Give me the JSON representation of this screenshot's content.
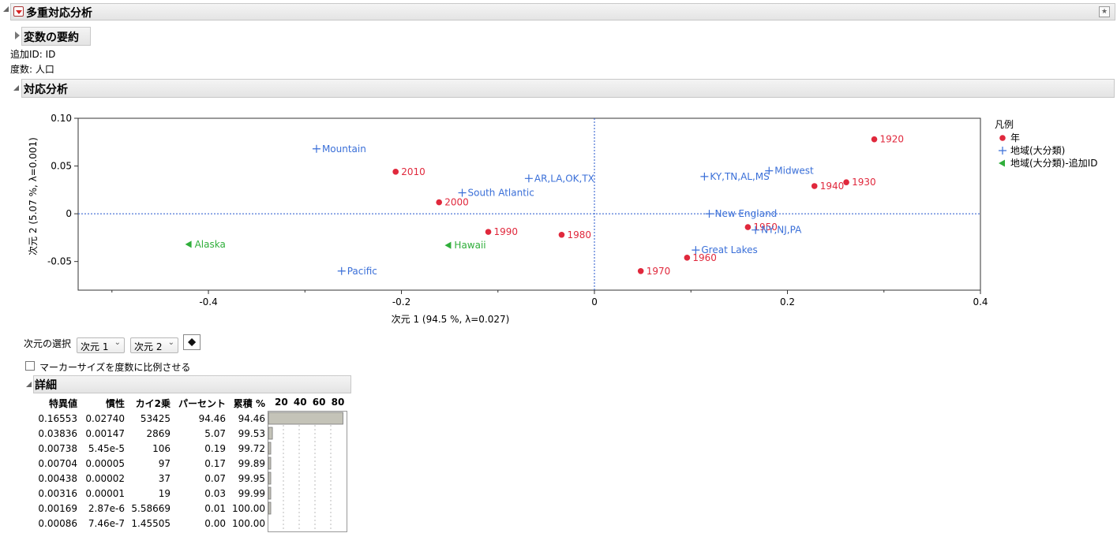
{
  "report": {
    "title": "多重対応分析",
    "summary_title": "変数の要約",
    "supp_id_label": "追加ID: ID",
    "freq_label": "度数: 人口",
    "ca_title": "対応分析"
  },
  "chart_data": {
    "type": "scatter",
    "xlabel": "次元 1  (94.5 %, λ=0.027)",
    "ylabel": "次元 2  (5.07 %, λ=0.001)",
    "xlim": [
      -0.535,
      0.4
    ],
    "ylim": [
      -0.08,
      0.1
    ],
    "x_ticks": [
      -0.4,
      -0.2,
      0,
      0.2,
      0.4
    ],
    "x_tick_labels": [
      "-0.4",
      "-0.2",
      "0",
      "0.2",
      "0.4"
    ],
    "y_ticks": [
      0.1,
      0.05,
      0,
      -0.05
    ],
    "y_tick_labels": [
      "0.10",
      "0.05",
      "0",
      "-0.05"
    ],
    "reference_lines": [
      {
        "axis": "x",
        "value": 0
      },
      {
        "axis": "y",
        "value": 0
      }
    ],
    "legend_title": "凡例",
    "legend_position": "right",
    "series": [
      {
        "name": "年",
        "marker": "circle",
        "color": "#e0283c",
        "points": [
          {
            "label": "1920",
            "x": 0.29,
            "y": 0.078
          },
          {
            "label": "1930",
            "x": 0.261,
            "y": 0.033
          },
          {
            "label": "1940",
            "x": 0.228,
            "y": 0.029
          },
          {
            "label": "1950",
            "x": 0.159,
            "y": -0.014
          },
          {
            "label": "1960",
            "x": 0.096,
            "y": -0.046
          },
          {
            "label": "1970",
            "x": 0.048,
            "y": -0.06
          },
          {
            "label": "1980",
            "x": -0.034,
            "y": -0.022
          },
          {
            "label": "1990",
            "x": -0.11,
            "y": -0.019
          },
          {
            "label": "2000",
            "x": -0.161,
            "y": 0.012
          },
          {
            "label": "2010",
            "x": -0.206,
            "y": 0.044
          }
        ]
      },
      {
        "name": "地域(大分類)",
        "marker": "plus",
        "color": "#3a6fd8",
        "points": [
          {
            "label": "Mountain",
            "x": -0.288,
            "y": 0.068
          },
          {
            "label": "AR,LA,OK,TX",
            "x": -0.068,
            "y": 0.037
          },
          {
            "label": "South Atlantic",
            "x": -0.137,
            "y": 0.022
          },
          {
            "label": "Pacific",
            "x": -0.262,
            "y": -0.06
          },
          {
            "label": "KY,TN,AL,MS",
            "x": 0.114,
            "y": 0.039
          },
          {
            "label": "Midwest",
            "x": 0.181,
            "y": 0.045
          },
          {
            "label": "New England",
            "x": 0.119,
            "y": 0.0
          },
          {
            "label": "NY,NJ,PA",
            "x": 0.167,
            "y": -0.017
          },
          {
            "label": "Great Lakes",
            "x": 0.105,
            "y": -0.038
          }
        ]
      },
      {
        "name": "地域(大分類)-追加ID",
        "marker": "triangle-left",
        "color": "#2fae3a",
        "points": [
          {
            "label": "Alaska",
            "x": -0.42,
            "y": -0.032
          },
          {
            "label": "Hawaii",
            "x": -0.151,
            "y": -0.033
          }
        ]
      }
    ]
  },
  "dimension_select": {
    "label": "次元の選択",
    "x_value": "次元 1",
    "y_value": "次元 2"
  },
  "marker_size_checkbox": {
    "label": "マーカーサイズを度数に比例させる",
    "checked": false
  },
  "details": {
    "title": "詳細",
    "headers": [
      "特異値",
      "慣性",
      "カイ2乗",
      "パーセント",
      "累積 %"
    ],
    "bar_scale_labels": [
      "20",
      "40",
      "60",
      "80"
    ],
    "rows": [
      [
        "0.16553",
        "0.02740",
        "53425",
        "94.46",
        "94.46"
      ],
      [
        "0.03836",
        "0.00147",
        "2869",
        "5.07",
        "99.53"
      ],
      [
        "0.00738",
        "5.45e-5",
        "106",
        "0.19",
        "99.72"
      ],
      [
        "0.00704",
        "0.00005",
        "97",
        "0.17",
        "99.89"
      ],
      [
        "0.00438",
        "0.00002",
        "37",
        "0.07",
        "99.95"
      ],
      [
        "0.00316",
        "0.00001",
        "19",
        "0.03",
        "99.99"
      ],
      [
        "0.00169",
        "2.87e-6",
        "5.58669",
        "0.01",
        "100.00"
      ],
      [
        "0.00086",
        "7.46e-7",
        "1.45505",
        "0.00",
        "100.00"
      ]
    ],
    "percent_values": [
      94.46,
      5.07,
      0.19,
      0.17,
      0.07,
      0.03,
      0.01,
      0.0
    ]
  },
  "colors": {
    "years": "#e0283c",
    "regions": "#3a6fd8",
    "supplementary": "#2fae3a",
    "reference_line": "#2255cc"
  }
}
